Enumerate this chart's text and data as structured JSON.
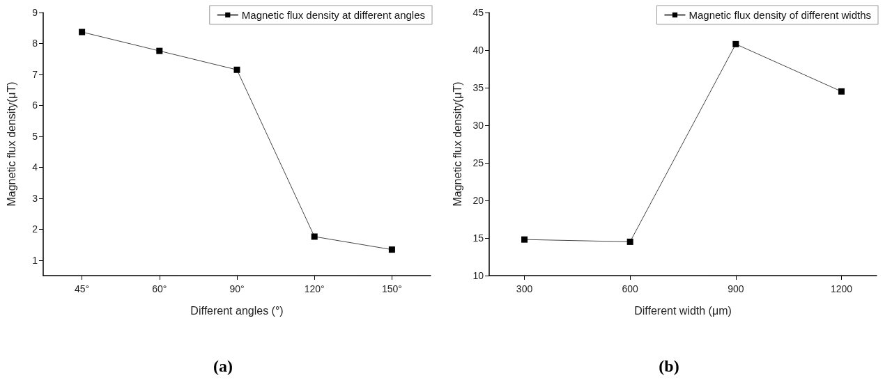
{
  "chart_data": [
    {
      "type": "line",
      "xlabel": "Different angles (°)",
      "ylabel": "Magnetic flux density(μT)",
      "categories": [
        "45°",
        "60°",
        "90°",
        "120°",
        "150°"
      ],
      "series": [
        {
          "name": "Magnetic flux density at different angles",
          "color": "#000000",
          "values": [
            8.37,
            7.76,
            7.15,
            1.76,
            1.34
          ]
        }
      ],
      "ylim": [
        0.5,
        9
      ],
      "yticks": [
        1,
        2,
        3,
        4,
        5,
        6,
        7,
        8,
        9
      ],
      "grid": false,
      "legend": "top right",
      "marker": "square",
      "line_style": "solid",
      "annotations": [
        "(a)"
      ]
    },
    {
      "type": "line",
      "xlabel": "Different width (μm)",
      "ylabel": "Magnetic flux density(μT)",
      "x": [
        300,
        600,
        900,
        1200
      ],
      "series": [
        {
          "name": "Magnetic flux density of different widths",
          "color": "#000000",
          "values": [
            14.8,
            14.5,
            40.8,
            34.5
          ]
        }
      ],
      "xlim": [
        200,
        1300
      ],
      "xticks": [
        300,
        600,
        900,
        1200
      ],
      "ylim": [
        10,
        45
      ],
      "yticks": [
        10,
        15,
        20,
        25,
        30,
        35,
        40,
        45
      ],
      "grid": false,
      "legend": "top right",
      "marker": "square",
      "line_style": "solid",
      "annotations": [
        "(b)"
      ]
    }
  ]
}
